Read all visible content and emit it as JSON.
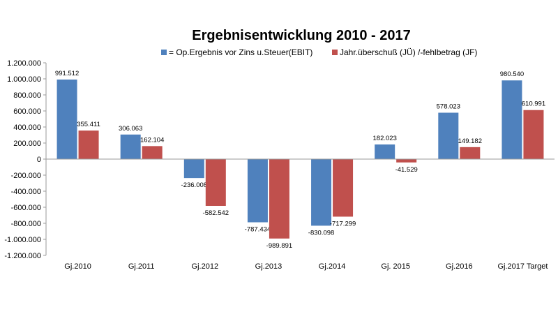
{
  "chart_data": {
    "type": "bar",
    "title": "Ergebnisentwicklung 2010 - 2017",
    "categories": [
      "Gj.2010",
      "Gj.2011",
      "Gj.2012",
      "Gj.2013",
      "Gj.2014",
      "Gj. 2015",
      "Gj.2016",
      "Gj.2017 Target"
    ],
    "series": [
      {
        "name": "= Op.Ergebnis vor Zins u.Steuer(EBIT)",
        "color": "#4f81bd",
        "values": [
          991512,
          306063,
          -236008,
          -787434,
          -830098,
          182023,
          578023,
          980540
        ],
        "labels": [
          "991.512",
          "306.063",
          "-236.008",
          "-787.434",
          "-830.098",
          "182.023",
          "578.023",
          "980.540"
        ]
      },
      {
        "name": "Jahr.überschuß (JÜ) /-fehlbetrag (JF)",
        "color": "#c0504d",
        "values": [
          355411,
          162104,
          -582542,
          -989891,
          -717299,
          -41529,
          149182,
          610991
        ],
        "labels": [
          "355.411",
          "162.104",
          "-582.542",
          "-989.891",
          "-717.299",
          "-41.529",
          "149.182",
          "610.991"
        ]
      }
    ],
    "ylim": [
      -1200000,
      1200000
    ],
    "yticks": [
      1200000,
      1000000,
      800000,
      600000,
      400000,
      200000,
      0,
      -200000,
      -400000,
      -600000,
      -800000,
      -1000000,
      -1200000
    ],
    "ytick_labels": [
      "1.200.000",
      "1.000.000",
      "800.000",
      "600.000",
      "400.000",
      "200.000",
      "0",
      "-200.000",
      "-400.000",
      "-600.000",
      "-800.000",
      "-1.000.000",
      "-1.200.000"
    ],
    "grid": false,
    "legend_position": "top"
  }
}
